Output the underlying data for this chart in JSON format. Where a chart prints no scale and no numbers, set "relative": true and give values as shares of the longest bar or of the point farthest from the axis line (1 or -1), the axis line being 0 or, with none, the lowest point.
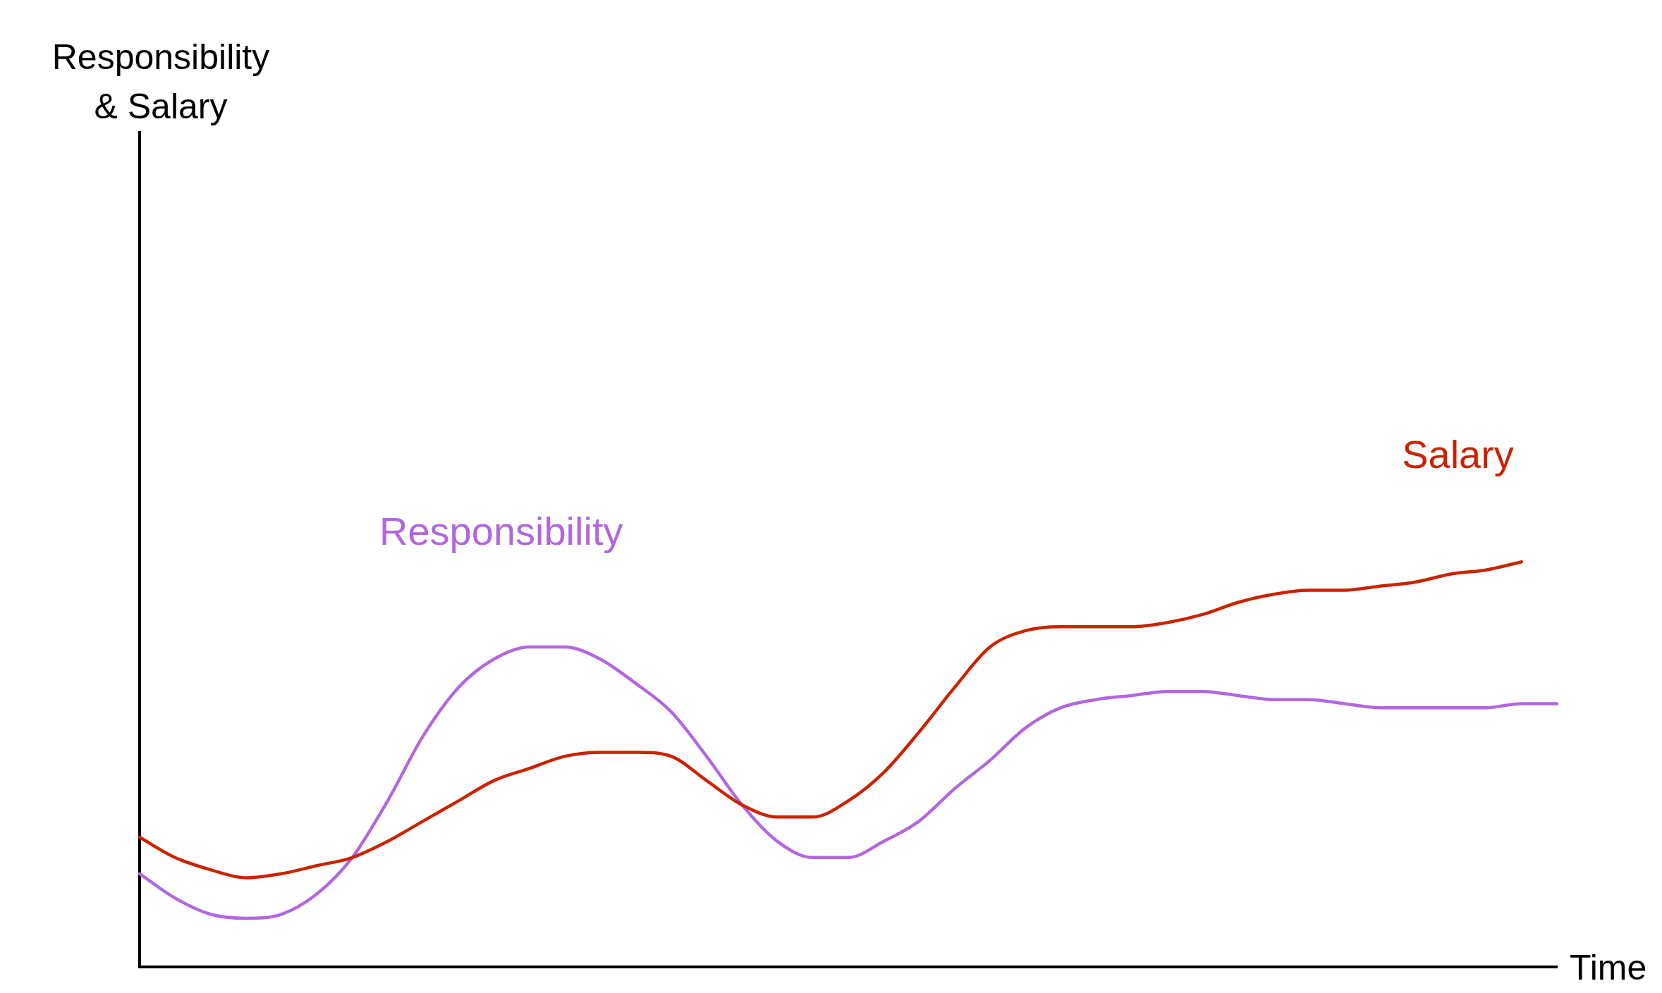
{
  "chart_data": {
    "type": "line",
    "relative": true,
    "annotations": [
      "Responsibility\n& Salary"
    ],
    "xlabel": "Time",
    "grid": false,
    "legend": false,
    "marker": "none",
    "line_style": "solid",
    "categories": [
      null,
      null,
      null,
      null,
      null,
      null,
      null,
      null,
      null,
      null,
      null,
      null,
      null,
      null,
      null,
      null,
      null,
      null,
      null,
      null,
      null,
      null,
      null,
      null,
      null,
      null,
      null,
      null,
      null,
      null,
      null,
      null,
      null,
      null,
      null,
      null,
      null,
      null,
      null,
      null,
      null
    ],
    "series": [
      {
        "name": "Salary",
        "color": "#cc2200",
        "values": [
          0.32,
          0.27,
          0.24,
          0.22,
          0.23,
          0.25,
          0.27,
          0.31,
          0.36,
          0.41,
          0.46,
          0.49,
          0.52,
          0.53,
          0.53,
          0.52,
          0.46,
          0.4,
          0.37,
          0.37,
          0.41,
          0.48,
          0.58,
          0.69,
          0.79,
          0.83,
          0.84,
          0.84,
          0.84,
          0.85,
          0.87,
          0.9,
          0.92,
          0.93,
          0.93,
          0.94,
          0.95,
          0.97,
          0.98,
          1,
          null
        ]
      },
      {
        "name": "Responsibility",
        "color": "#b266e0",
        "values": [
          0.23,
          0.17,
          0.13,
          0.12,
          0.13,
          0.18,
          0.27,
          0.41,
          0.57,
          0.69,
          0.76,
          0.79,
          0.79,
          0.76,
          0.7,
          0.63,
          0.52,
          0.4,
          0.31,
          0.27,
          0.27,
          0.31,
          0.36,
          0.44,
          0.51,
          0.59,
          0.64,
          0.66,
          0.67,
          0.68,
          0.68,
          0.67,
          0.66,
          0.66,
          0.65,
          0.64,
          0.64,
          0.64,
          0.64,
          0.65,
          0.65
        ]
      }
    ]
  }
}
